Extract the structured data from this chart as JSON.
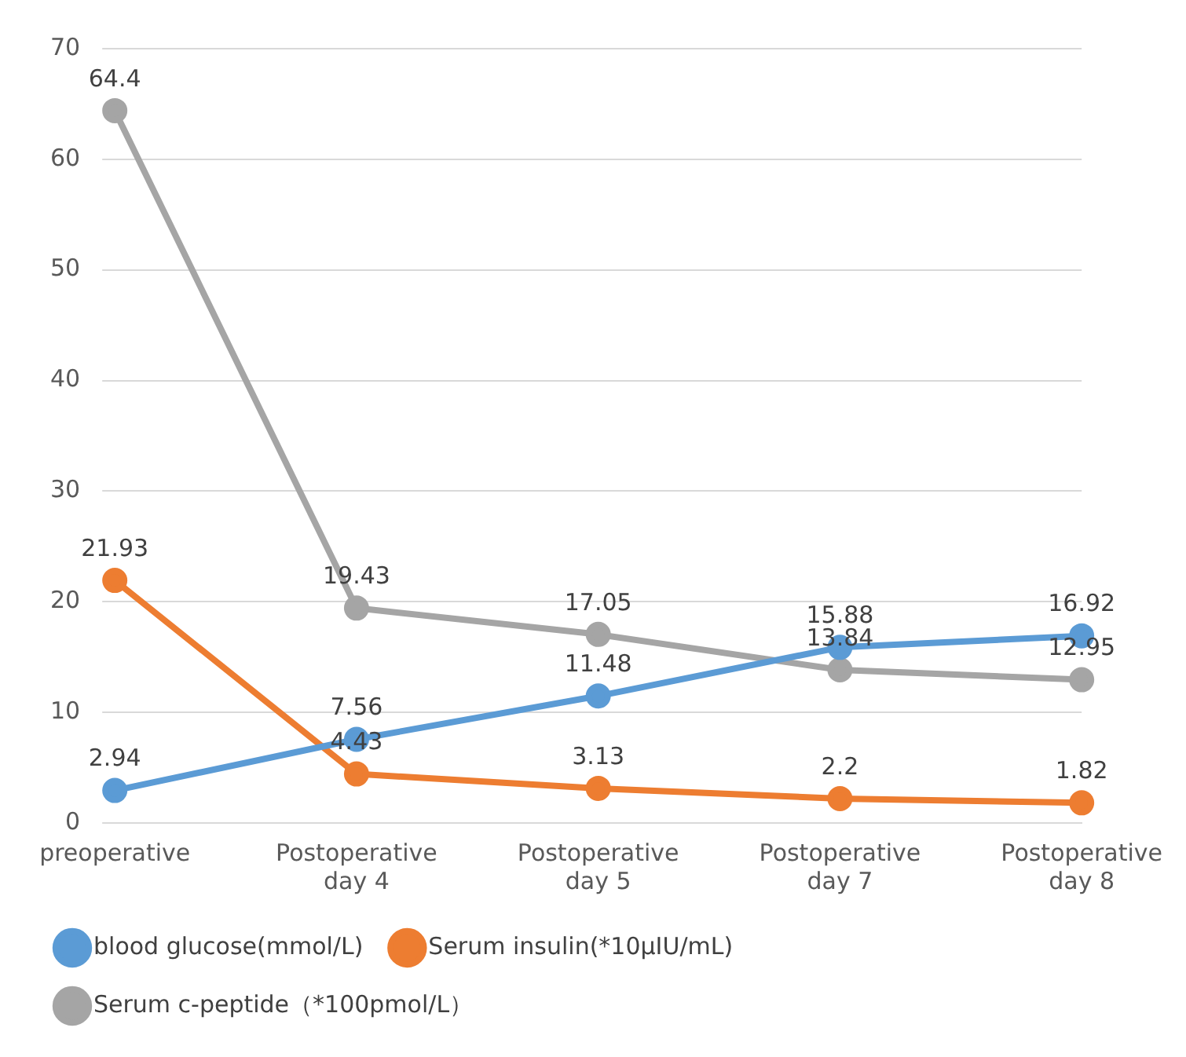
{
  "chart_data": {
    "type": "line",
    "categories": [
      "preoperative",
      "Postoperative day 4",
      "Postoperative day 5",
      "Postoperative day 7",
      "Postoperative day 8"
    ],
    "series": [
      {
        "name": "blood glucose(mmol/L)",
        "color": "#5b9bd5",
        "values": [
          2.94,
          7.56,
          11.48,
          15.88,
          16.92
        ]
      },
      {
        "name": "Serum insulin(*10μIU/mL)",
        "color": "#ed7d31",
        "values": [
          21.93,
          4.43,
          3.13,
          2.2,
          1.82
        ]
      },
      {
        "name": "Serum c-peptide（*100pmol/L）",
        "color": "#a5a5a5",
        "values": [
          64.4,
          19.43,
          17.05,
          13.84,
          12.95
        ]
      }
    ],
    "ylim": [
      0,
      70
    ],
    "yticks": [
      0,
      10,
      20,
      30,
      40,
      50,
      60,
      70
    ],
    "grid": "y",
    "legend": "bottom",
    "marker": "circle",
    "line_style": "solid",
    "data_labels": true
  }
}
